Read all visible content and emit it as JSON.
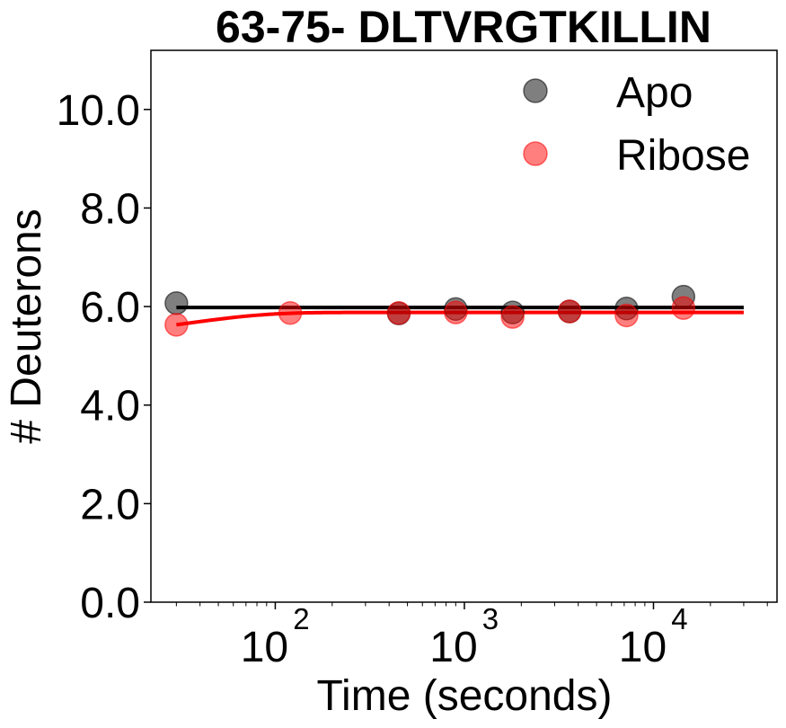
{
  "chart_data": {
    "type": "scatter",
    "title": "63-75- DLTVRGTKILLIN",
    "xlabel": "Time (seconds)",
    "ylabel": "# Deuterons",
    "xscale": "log",
    "xlim": [
      22,
      45000
    ],
    "ylim": [
      0,
      11.2
    ],
    "yticks": [
      0,
      2,
      4,
      6,
      8,
      10
    ],
    "ytick_labels": [
      "0.0",
      "2.0",
      "4.0",
      "6.0",
      "8.0",
      "10.0"
    ],
    "xticks": [
      100,
      1000,
      10000
    ],
    "xtick_labels": [
      {
        "base": "10",
        "exp": "2"
      },
      {
        "base": "10",
        "exp": "3"
      },
      {
        "base": "10",
        "exp": "4"
      }
    ],
    "legend_position": "top-right",
    "grid": false,
    "series": [
      {
        "name": "Apo",
        "color": "#000000",
        "points": [
          {
            "x": 30,
            "y": 6.07
          },
          {
            "x": 450,
            "y": 5.86
          },
          {
            "x": 900,
            "y": 5.95
          },
          {
            "x": 1800,
            "y": 5.88
          },
          {
            "x": 3600,
            "y": 5.9
          },
          {
            "x": 7200,
            "y": 5.96
          },
          {
            "x": 14400,
            "y": 6.2
          }
        ],
        "fit": {
          "x": [
            30,
            30000
          ],
          "plateau": 5.98,
          "initial": 5.98,
          "rate": 0.05
        }
      },
      {
        "name": "Ribose",
        "color": "#ff0000",
        "points": [
          {
            "x": 30,
            "y": 5.63
          },
          {
            "x": 120,
            "y": 5.87
          },
          {
            "x": 450,
            "y": 5.87
          },
          {
            "x": 900,
            "y": 5.88
          },
          {
            "x": 1800,
            "y": 5.79
          },
          {
            "x": 3600,
            "y": 5.9
          },
          {
            "x": 7200,
            "y": 5.82
          },
          {
            "x": 14400,
            "y": 5.97
          }
        ],
        "fit": {
          "x": [
            30,
            30000
          ],
          "plateau": 5.88,
          "initial": 5.63,
          "rate": 0.03
        }
      }
    ]
  }
}
